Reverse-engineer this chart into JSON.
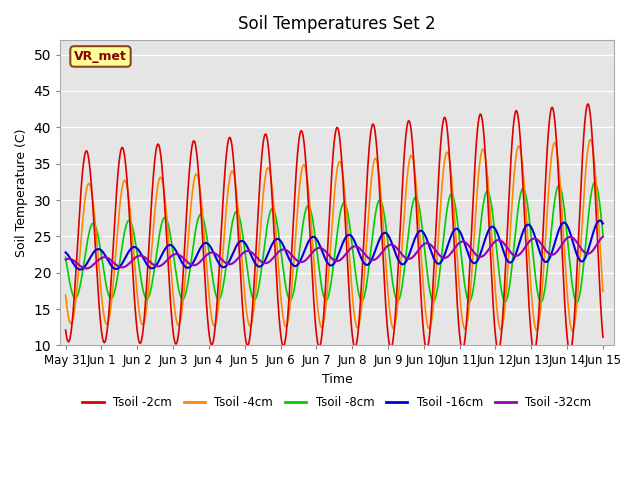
{
  "title": "Soil Temperatures Set 2",
  "xlabel": "Time",
  "ylabel": "Soil Temperature (C)",
  "ylim": [
    10,
    52
  ],
  "xlim_start": -0.15,
  "xlim_end": 15.3,
  "annotation": "VR_met",
  "background_color": "#e5e5e5",
  "legend": [
    {
      "label": "Tsoil -2cm",
      "color": "#dd0000"
    },
    {
      "label": "Tsoil -4cm",
      "color": "#ff8800"
    },
    {
      "label": "Tsoil -8cm",
      "color": "#00cc00"
    },
    {
      "label": "Tsoil -16cm",
      "color": "#0000dd"
    },
    {
      "label": "Tsoil -32cm",
      "color": "#9900bb"
    }
  ],
  "xtick_labels": [
    "May 31",
    "Jun 1",
    "Jun 2",
    "Jun 3",
    "Jun 4",
    "Jun 5",
    "Jun 6",
    "Jun 7",
    "Jun 8",
    "Jun 9",
    "Jun 10",
    "Jun 11",
    "Jun 12",
    "Jun 13",
    "Jun 14",
    "Jun 15"
  ],
  "xtick_positions": [
    0,
    1,
    2,
    3,
    4,
    5,
    6,
    7,
    8,
    9,
    10,
    11,
    12,
    13,
    14,
    15
  ],
  "ytick_positions": [
    10,
    15,
    20,
    25,
    30,
    35,
    40,
    45,
    50
  ]
}
